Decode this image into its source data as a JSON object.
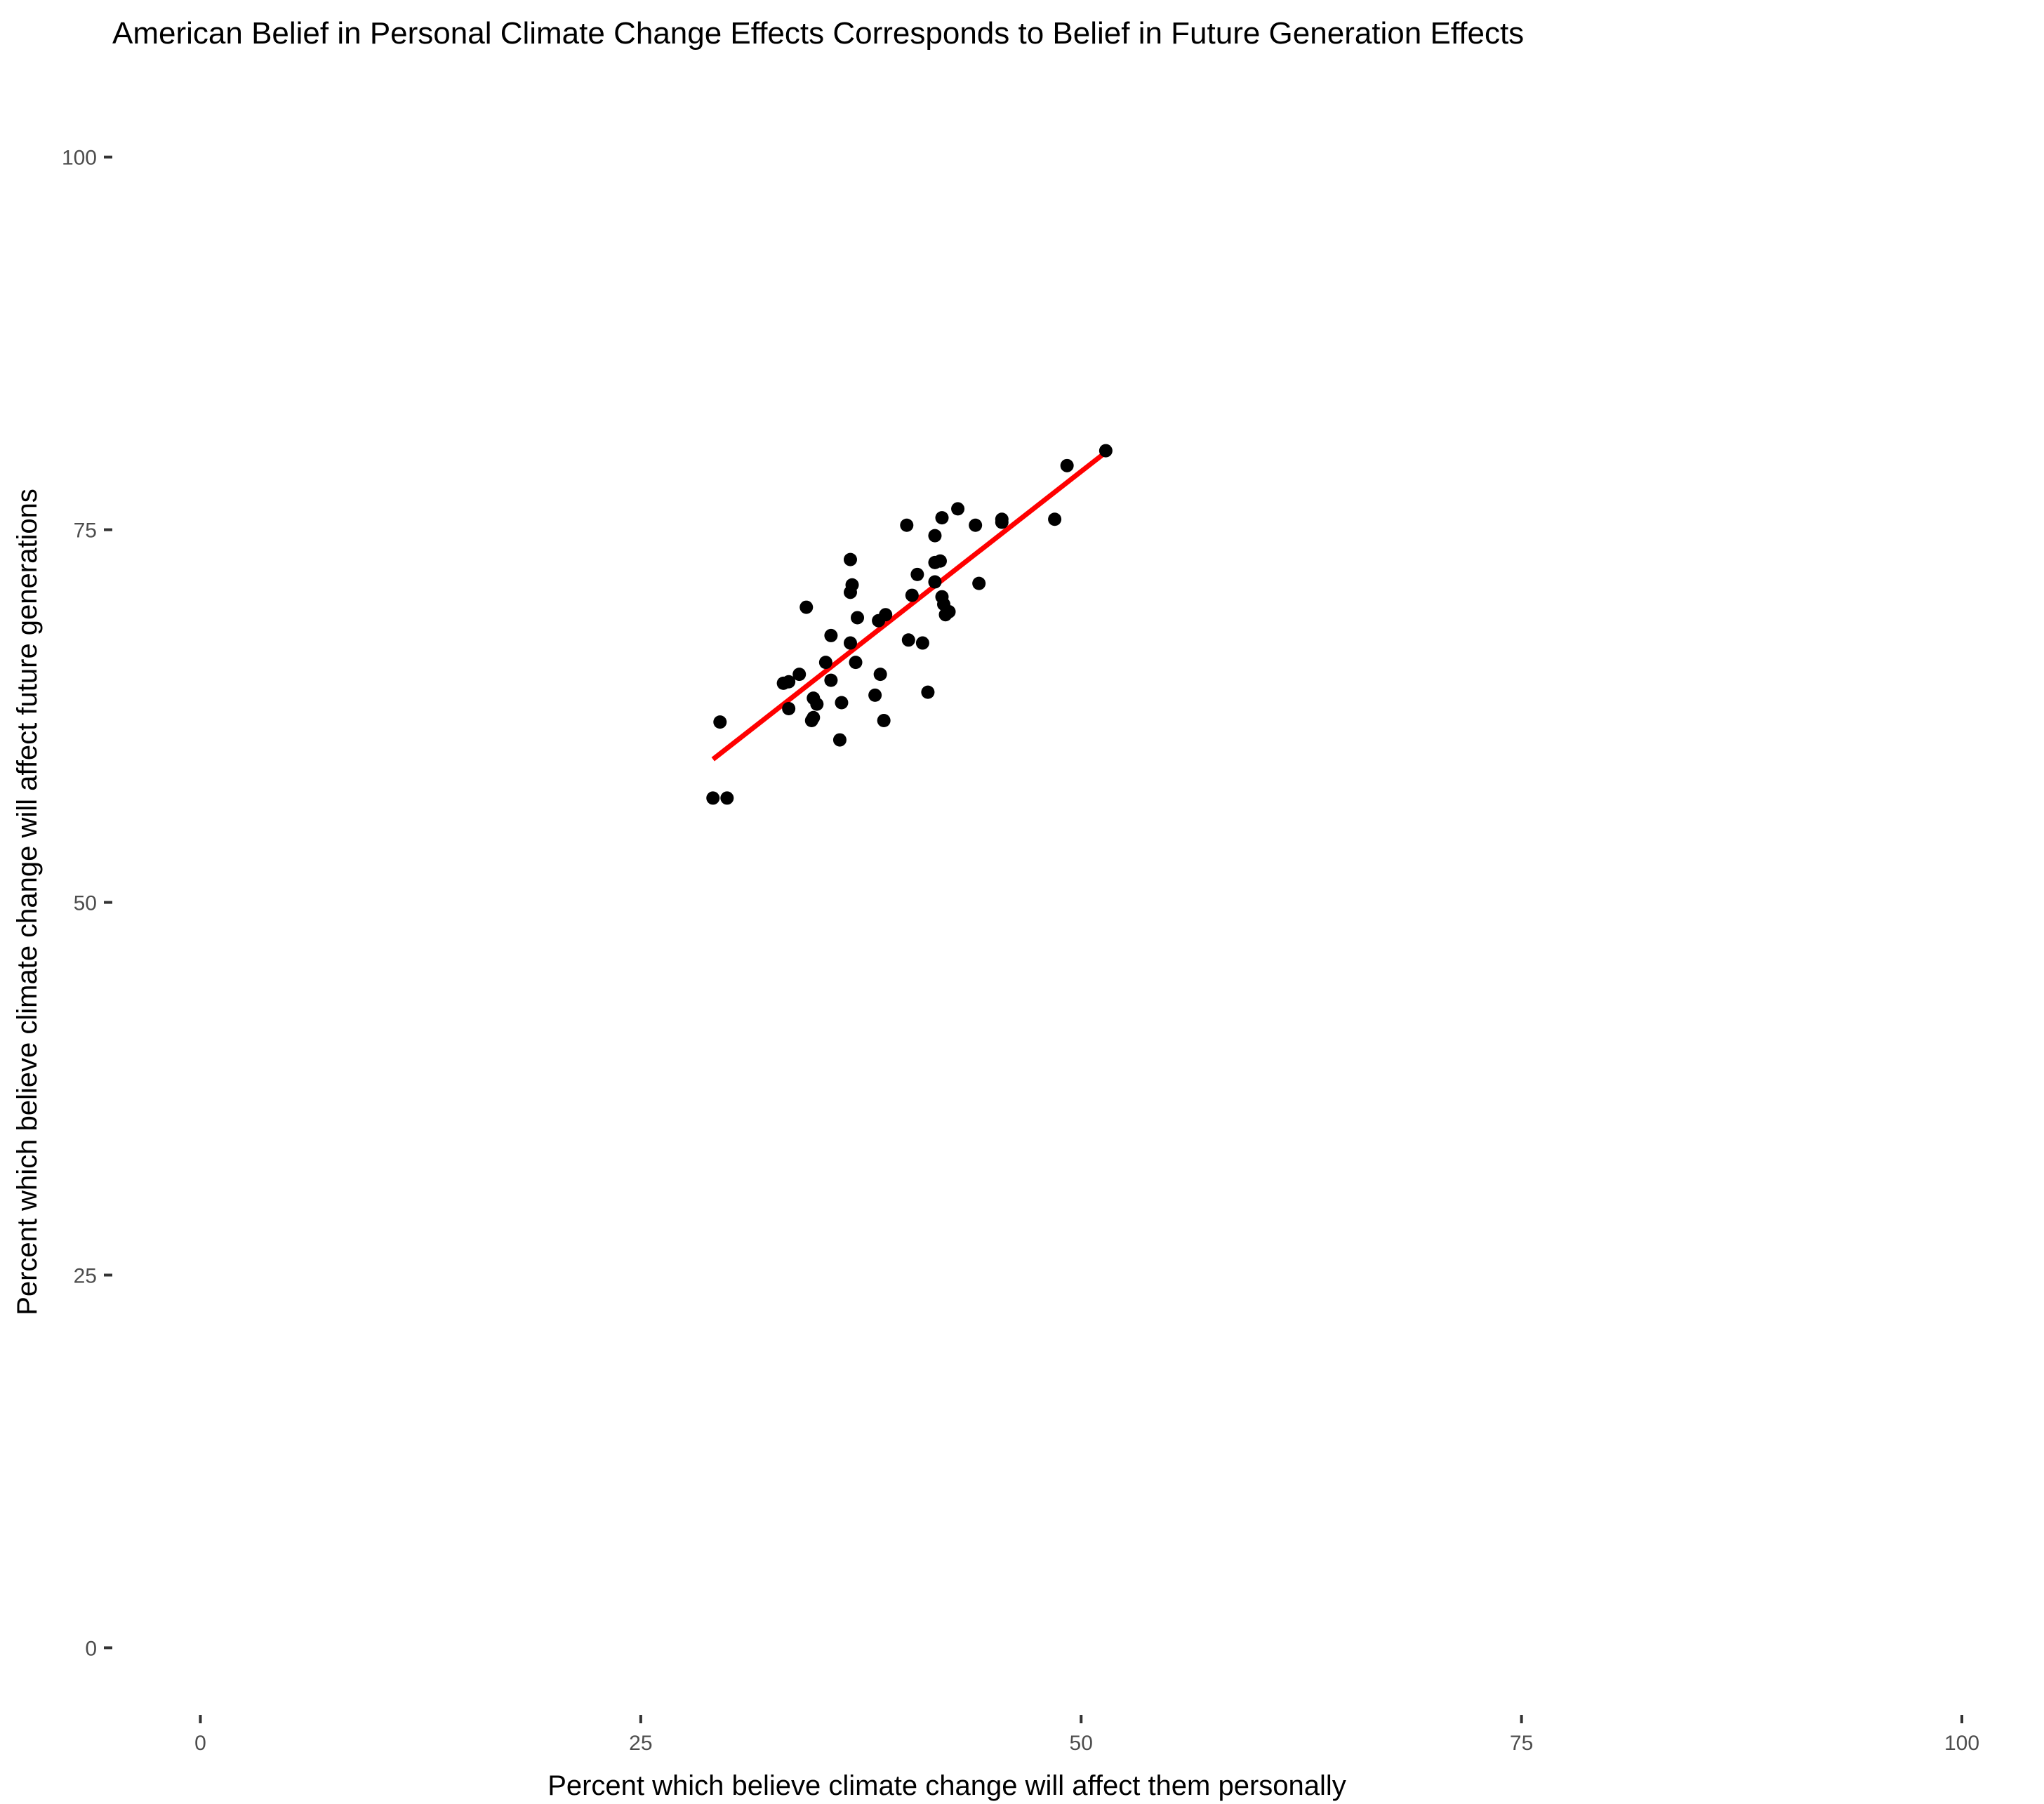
{
  "chart_data": {
    "type": "scatter",
    "title": "American Belief in Personal Climate Change Effects Corresponds to Belief in Future Generation Effects",
    "xlabel": "Percent which believe climate change will affect them personally",
    "ylabel": "Percent which believe climate change will affect future generations",
    "xlim": [
      -5,
      100
    ],
    "ylim": [
      -4.5,
      103
    ],
    "x_ticks": [
      0,
      25,
      50,
      75,
      100
    ],
    "y_ticks": [
      0,
      25,
      50,
      75,
      100
    ],
    "grid": false,
    "legend": "none",
    "point_color": "#000000",
    "fit_color": "#ff0000",
    "series": [
      {
        "values": [
          {
            "x": 29.1,
            "y": 57.0
          },
          {
            "x": 29.9,
            "y": 57.0
          },
          {
            "x": 29.5,
            "y": 62.1
          },
          {
            "x": 33.1,
            "y": 64.7
          },
          {
            "x": 33.4,
            "y": 64.8
          },
          {
            "x": 33.4,
            "y": 63.0
          },
          {
            "x": 34.0,
            "y": 65.3
          },
          {
            "x": 34.4,
            "y": 69.8
          },
          {
            "x": 34.8,
            "y": 63.7
          },
          {
            "x": 34.8,
            "y": 62.4
          },
          {
            "x": 35.0,
            "y": 63.3
          },
          {
            "x": 34.7,
            "y": 62.2
          },
          {
            "x": 35.5,
            "y": 66.1
          },
          {
            "x": 35.8,
            "y": 64.9
          },
          {
            "x": 35.8,
            "y": 67.9
          },
          {
            "x": 36.3,
            "y": 60.9
          },
          {
            "x": 36.4,
            "y": 63.4
          },
          {
            "x": 36.9,
            "y": 67.4
          },
          {
            "x": 36.9,
            "y": 70.8
          },
          {
            "x": 37.0,
            "y": 71.3
          },
          {
            "x": 36.9,
            "y": 73.0
          },
          {
            "x": 37.2,
            "y": 66.1
          },
          {
            "x": 37.3,
            "y": 69.1
          },
          {
            "x": 38.3,
            "y": 63.9
          },
          {
            "x": 38.6,
            "y": 65.3
          },
          {
            "x": 38.5,
            "y": 68.9
          },
          {
            "x": 38.9,
            "y": 69.3
          },
          {
            "x": 38.8,
            "y": 62.2
          },
          {
            "x": 40.1,
            "y": 75.3
          },
          {
            "x": 40.2,
            "y": 67.6
          },
          {
            "x": 40.4,
            "y": 70.6
          },
          {
            "x": 40.7,
            "y": 72.0
          },
          {
            "x": 41.0,
            "y": 67.4
          },
          {
            "x": 41.3,
            "y": 64.1
          },
          {
            "x": 41.7,
            "y": 71.5
          },
          {
            "x": 41.7,
            "y": 72.8
          },
          {
            "x": 41.7,
            "y": 74.6
          },
          {
            "x": 42.0,
            "y": 72.9
          },
          {
            "x": 42.1,
            "y": 75.8
          },
          {
            "x": 42.1,
            "y": 70.5
          },
          {
            "x": 42.2,
            "y": 70.0
          },
          {
            "x": 42.3,
            "y": 69.3
          },
          {
            "x": 42.5,
            "y": 69.5
          },
          {
            "x": 43.0,
            "y": 76.4
          },
          {
            "x": 44.0,
            "y": 75.3
          },
          {
            "x": 44.2,
            "y": 71.4
          },
          {
            "x": 45.5,
            "y": 75.7
          },
          {
            "x": 45.5,
            "y": 75.5
          },
          {
            "x": 48.5,
            "y": 75.7
          },
          {
            "x": 49.2,
            "y": 79.3
          },
          {
            "x": 51.4,
            "y": 80.3
          }
        ]
      }
    ],
    "fit_line": {
      "x": [
        29.1,
        51.4
      ],
      "y": [
        59.6,
        80.2
      ]
    }
  }
}
